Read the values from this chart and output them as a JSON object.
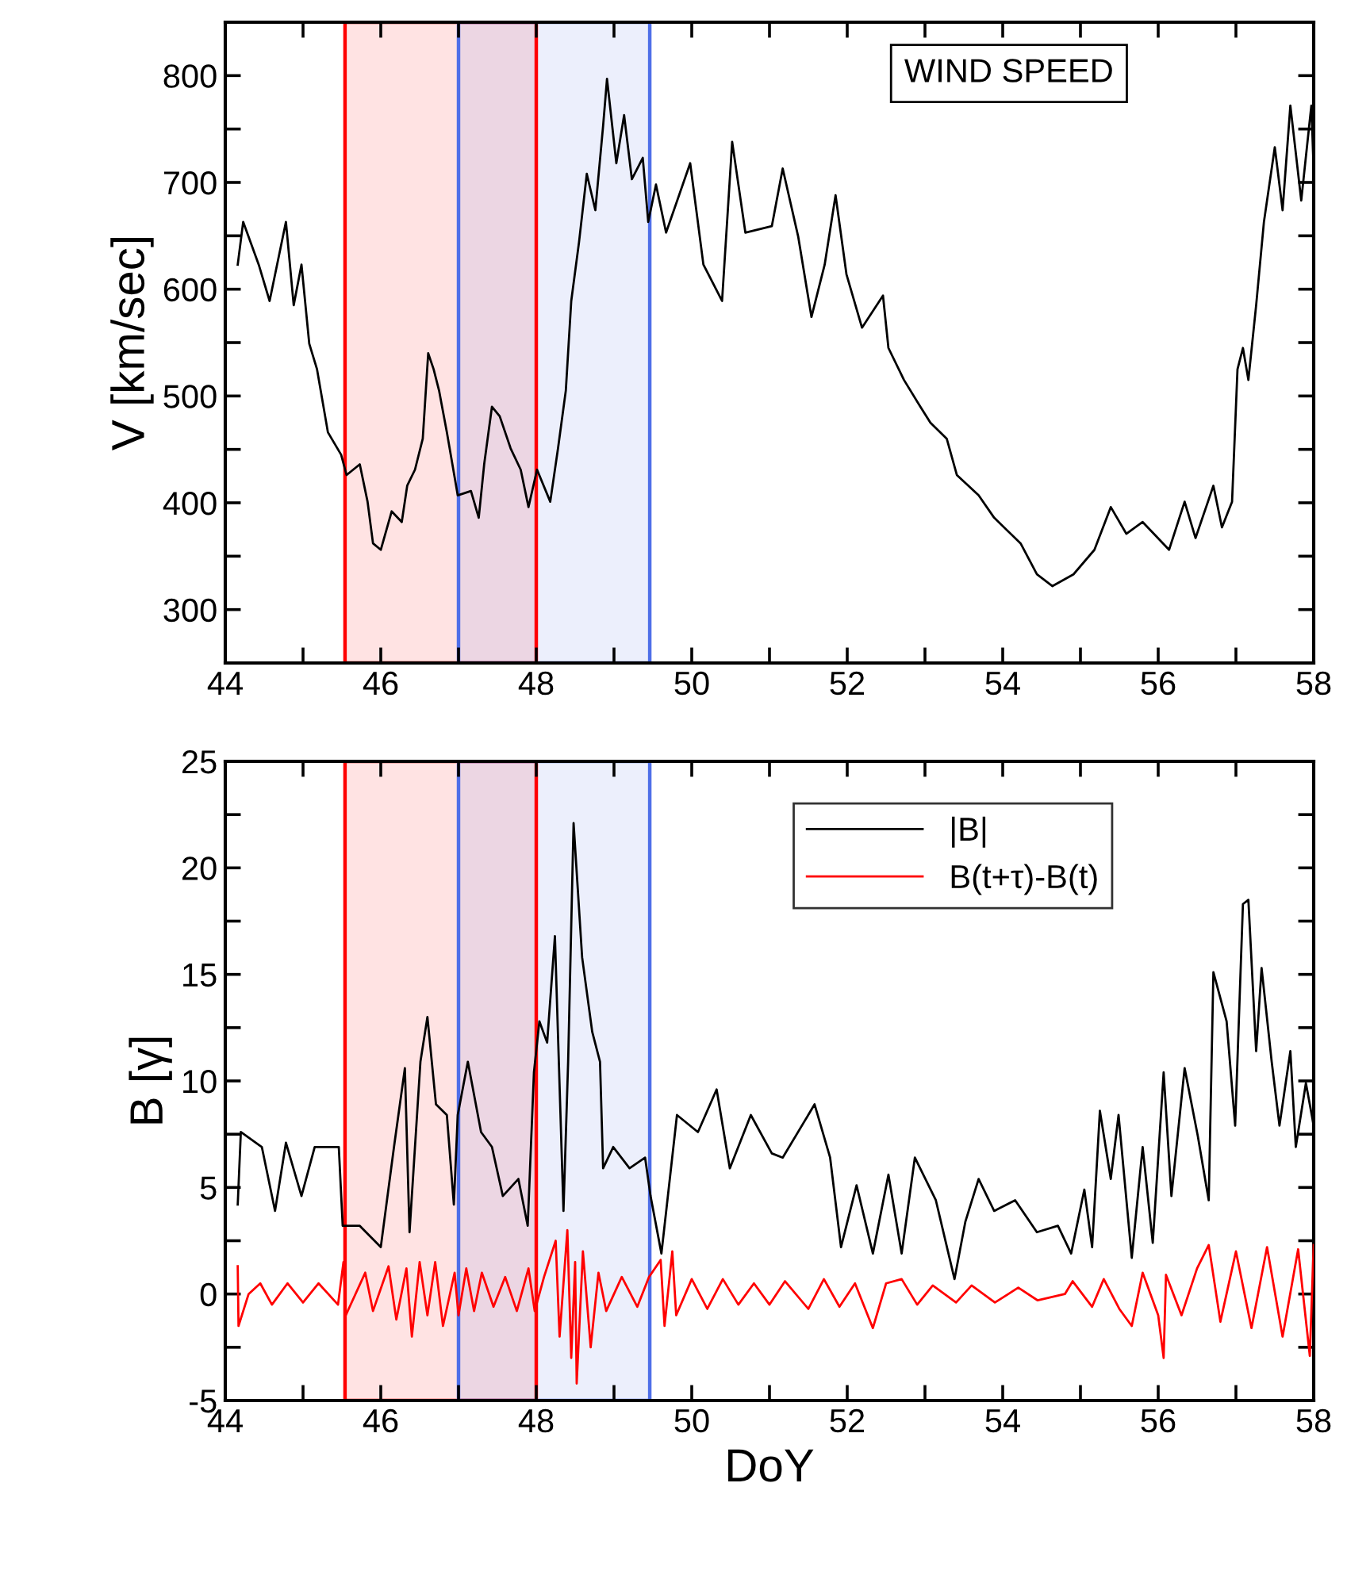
{
  "chart_data": [
    {
      "type": "line",
      "ylabel": "V [km/sec]",
      "annotations": [
        "WIND SPEED"
      ],
      "xlim": [
        44,
        58
      ],
      "ylim": [
        250,
        850
      ],
      "xticks": [
        44,
        {
          "value": 45,
          "label": null
        },
        46,
        {
          "value": 47,
          "label": null
        },
        48,
        {
          "value": 49,
          "label": null
        },
        50,
        {
          "value": 51,
          "label": null
        },
        52,
        {
          "value": 53,
          "label": null
        },
        54,
        {
          "value": 55,
          "label": null
        },
        56,
        {
          "value": 57,
          "label": null
        },
        58
      ],
      "yticks": [
        300,
        {
          "value": 350,
          "label": null
        },
        400,
        {
          "value": 450,
          "label": null
        },
        500,
        {
          "value": 550,
          "label": null
        },
        600,
        {
          "value": 650,
          "label": null
        },
        700,
        {
          "value": 750,
          "label": null
        },
        800
      ],
      "bands": [
        {
          "axis": "x",
          "from": 45.54,
          "to": 48.0,
          "color": "#ff0000"
        },
        {
          "axis": "x",
          "from": 47.0,
          "to": 49.46,
          "color": "#4f6fe8"
        }
      ],
      "grid": false,
      "legend": false,
      "series": [
        {
          "color": "#000000",
          "x": [
            44.16,
            44.23,
            44.43,
            44.57,
            44.78,
            44.88,
            44.98,
            45.08,
            45.18,
            45.32,
            45.49,
            45.56,
            45.73,
            45.83,
            45.9,
            46.0,
            46.14,
            46.27,
            46.34,
            46.44,
            46.54,
            46.61,
            46.68,
            46.75,
            46.85,
            46.99,
            47.16,
            47.26,
            47.33,
            47.43,
            47.53,
            47.67,
            47.8,
            47.9,
            48.01,
            48.18,
            48.28,
            48.38,
            48.45,
            48.55,
            48.65,
            48.76,
            48.86,
            48.91,
            49.03,
            49.13,
            49.23,
            49.37,
            49.44,
            49.54,
            49.67,
            49.98,
            50.15,
            50.39,
            50.52,
            50.69,
            51.03,
            51.17,
            51.37,
            51.54,
            51.71,
            51.85,
            51.99,
            52.19,
            52.46,
            52.53,
            52.73,
            52.94,
            53.07,
            53.28,
            53.41,
            53.69,
            53.89,
            54.23,
            54.44,
            54.64,
            54.91,
            55.18,
            55.39,
            55.59,
            55.8,
            56.14,
            56.34,
            56.48,
            56.71,
            56.82,
            56.95,
            57.02,
            57.09,
            57.16,
            57.26,
            57.36,
            57.5,
            57.6,
            57.7,
            57.84,
            57.97,
            58.0
          ],
          "values": [
            623,
            663,
            623,
            589,
            663,
            585,
            623,
            549,
            525,
            466,
            445,
            426,
            436,
            401,
            362,
            356,
            392,
            382,
            416,
            431,
            460,
            540,
            525,
            505,
            466,
            407,
            411,
            386,
            436,
            490,
            481,
            451,
            431,
            396,
            431,
            401,
            451,
            505,
            589,
            644,
            708,
            674,
            753,
            797,
            718,
            763,
            703,
            723,
            663,
            698,
            653,
            718,
            623,
            589,
            738,
            653,
            659,
            713,
            649,
            574,
            623,
            688,
            614,
            564,
            594,
            545,
            515,
            490,
            475,
            460,
            426,
            407,
            386,
            362,
            333,
            322,
            333,
            356,
            396,
            371,
            382,
            356,
            401,
            367,
            416,
            377,
            401,
            525,
            545,
            515,
            585,
            663,
            733,
            674,
            772,
            683,
            772,
            713
          ]
        }
      ]
    },
    {
      "type": "line",
      "xlabel": "DoY",
      "ylabel": "B [γ]",
      "xlim": [
        44,
        58
      ],
      "ylim": [
        -5,
        25
      ],
      "xticks": [
        44,
        {
          "value": 45,
          "label": null
        },
        46,
        {
          "value": 47,
          "label": null
        },
        48,
        {
          "value": 49,
          "label": null
        },
        50,
        {
          "value": 51,
          "label": null
        },
        52,
        {
          "value": 53,
          "label": null
        },
        54,
        {
          "value": 55,
          "label": null
        },
        56,
        {
          "value": 57,
          "label": null
        },
        58
      ],
      "yticks": [
        -5,
        {
          "value": -2.5,
          "label": null
        },
        0,
        {
          "value": 2.5,
          "label": null
        },
        5,
        {
          "value": 7.5,
          "label": null
        },
        10,
        {
          "value": 12.5,
          "label": null
        },
        15,
        {
          "value": 17.5,
          "label": null
        },
        20,
        {
          "value": 22.5,
          "label": null
        },
        25
      ],
      "bands": [
        {
          "axis": "x",
          "from": 45.54,
          "to": 48.0,
          "color": "#ff0000"
        },
        {
          "axis": "x",
          "from": 47.0,
          "to": 49.46,
          "color": "#4f6fe8"
        }
      ],
      "grid": false,
      "legend": "top right",
      "series": [
        {
          "name": "|B|",
          "color": "#000000",
          "x": [
            44.16,
            44.2,
            44.47,
            44.64,
            44.78,
            44.98,
            45.15,
            45.46,
            45.51,
            45.73,
            46.0,
            46.17,
            46.31,
            46.37,
            46.51,
            46.6,
            46.71,
            46.85,
            46.94,
            46.99,
            47.12,
            47.29,
            47.43,
            47.57,
            47.77,
            47.89,
            47.97,
            48.04,
            48.14,
            48.24,
            48.35,
            48.41,
            48.48,
            48.59,
            48.72,
            48.82,
            48.86,
            48.99,
            49.2,
            49.4,
            49.47,
            49.61,
            49.81,
            50.08,
            50.32,
            50.49,
            50.76,
            51.03,
            51.17,
            51.58,
            51.78,
            51.92,
            52.12,
            52.33,
            52.53,
            52.7,
            52.87,
            53.14,
            53.38,
            53.52,
            53.69,
            53.89,
            54.16,
            54.44,
            54.71,
            54.88,
            55.05,
            55.15,
            55.25,
            55.39,
            55.49,
            55.66,
            55.8,
            55.93,
            56.07,
            56.17,
            56.34,
            56.51,
            56.65,
            56.71,
            56.88,
            56.99,
            57.09,
            57.16,
            57.26,
            57.33,
            57.46,
            57.56,
            57.7,
            57.77,
            57.9,
            58.0
          ],
          "values": [
            4.2,
            7.6,
            6.9,
            3.9,
            7.1,
            4.6,
            6.9,
            6.9,
            3.2,
            3.2,
            2.2,
            6.9,
            10.6,
            2.9,
            10.9,
            13.0,
            8.9,
            8.4,
            4.2,
            8.4,
            10.9,
            7.6,
            6.9,
            4.6,
            5.4,
            3.2,
            10.4,
            12.8,
            11.8,
            16.8,
            3.9,
            10.9,
            22.1,
            15.8,
            12.3,
            10.9,
            5.9,
            6.9,
            5.9,
            6.4,
            4.6,
            1.9,
            8.4,
            7.6,
            9.6,
            5.9,
            8.4,
            6.6,
            6.4,
            8.9,
            6.4,
            2.2,
            5.1,
            1.9,
            5.6,
            1.9,
            6.4,
            4.4,
            0.7,
            3.4,
            5.4,
            3.9,
            4.4,
            2.9,
            3.2,
            1.9,
            4.9,
            2.2,
            8.6,
            5.4,
            8.4,
            1.7,
            6.9,
            2.4,
            10.4,
            4.6,
            10.6,
            7.4,
            4.4,
            15.1,
            12.8,
            7.9,
            18.3,
            18.5,
            11.4,
            15.3,
            10.9,
            7.9,
            11.4,
            6.9,
            9.9,
            7.9
          ]
        },
        {
          "name": "B(t+τ)-B(t)",
          "color": "#ff0000",
          "x": [
            44.16,
            44.17,
            44.3,
            44.45,
            44.6,
            44.8,
            45.0,
            45.2,
            45.45,
            45.52,
            45.55,
            45.8,
            45.9,
            46.1,
            46.2,
            46.33,
            46.4,
            46.5,
            46.6,
            46.7,
            46.8,
            46.95,
            47.0,
            47.1,
            47.2,
            47.3,
            47.45,
            47.6,
            47.75,
            47.9,
            47.98,
            48.1,
            48.25,
            48.3,
            48.4,
            48.45,
            48.5,
            48.52,
            48.6,
            48.7,
            48.8,
            48.9,
            49.1,
            49.3,
            49.45,
            49.6,
            49.65,
            49.75,
            49.8,
            50.0,
            50.2,
            50.4,
            50.6,
            50.8,
            51.0,
            51.2,
            51.5,
            51.7,
            51.9,
            52.1,
            52.33,
            52.5,
            52.7,
            52.9,
            53.1,
            53.4,
            53.6,
            53.9,
            54.2,
            54.45,
            54.8,
            54.9,
            55.15,
            55.3,
            55.5,
            55.66,
            55.8,
            56.0,
            56.07,
            56.1,
            56.3,
            56.5,
            56.65,
            56.8,
            57.0,
            57.2,
            57.4,
            57.6,
            57.8,
            57.95,
            58.0
          ],
          "values": [
            1.3,
            -1.5,
            0,
            0.5,
            -0.5,
            0.5,
            -0.4,
            0.5,
            -0.5,
            1.5,
            -1.0,
            1.0,
            -0.8,
            1.3,
            -1.2,
            1.2,
            -2.0,
            1.5,
            -1.0,
            1.5,
            -1.5,
            1.0,
            -1.0,
            1.2,
            -0.8,
            1.0,
            -0.6,
            0.8,
            -0.8,
            1.2,
            -0.8,
            0.8,
            2.5,
            -2.0,
            3.0,
            -3.0,
            1.5,
            -4.2,
            2.0,
            -2.5,
            1.0,
            -0.8,
            0.8,
            -0.6,
            0.8,
            1.6,
            -1.5,
            2.0,
            -1.0,
            0.7,
            -0.7,
            0.7,
            -0.5,
            0.5,
            -0.5,
            0.6,
            -0.7,
            0.7,
            -0.6,
            0.5,
            -1.6,
            0.5,
            0.7,
            -0.5,
            0.4,
            -0.4,
            0.4,
            -0.4,
            0.3,
            -0.3,
            0,
            0.6,
            -0.6,
            0.7,
            -0.7,
            -1.5,
            1.0,
            -1.0,
            -3.0,
            0.9,
            -1.0,
            1.2,
            2.3,
            -1.3,
            2.0,
            -1.6,
            2.2,
            -2.0,
            2.1,
            -2.9,
            2.3
          ]
        }
      ]
    }
  ]
}
